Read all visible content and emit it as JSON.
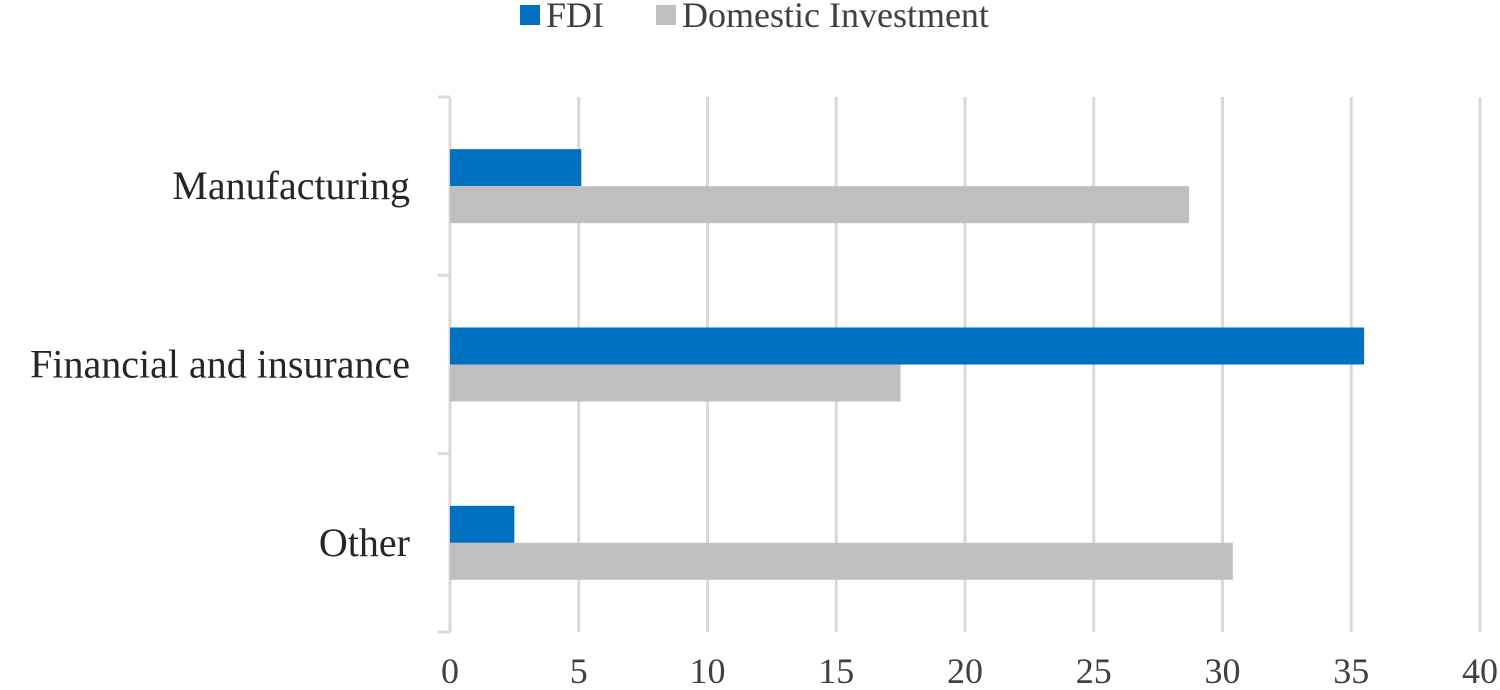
{
  "chart_data": {
    "type": "bar",
    "orientation": "horizontal",
    "title": "",
    "xlabel": "",
    "ylabel": "",
    "categories": [
      "Manufacturing",
      "Financial and insurance",
      "Other"
    ],
    "series": [
      {
        "name": "FDI",
        "color": "#0070C0",
        "values": [
          5.1,
          35.5,
          2.5
        ]
      },
      {
        "name": "Domestic Investment",
        "color": "#BFBFBF",
        "values": [
          28.7,
          17.5,
          30.4
        ]
      }
    ],
    "xlim": [
      0,
      40
    ],
    "xticks": [
      "0",
      "5",
      "10",
      "15",
      "20",
      "25",
      "30",
      "35",
      "40"
    ],
    "grid": true,
    "legend_position": "top-center"
  }
}
